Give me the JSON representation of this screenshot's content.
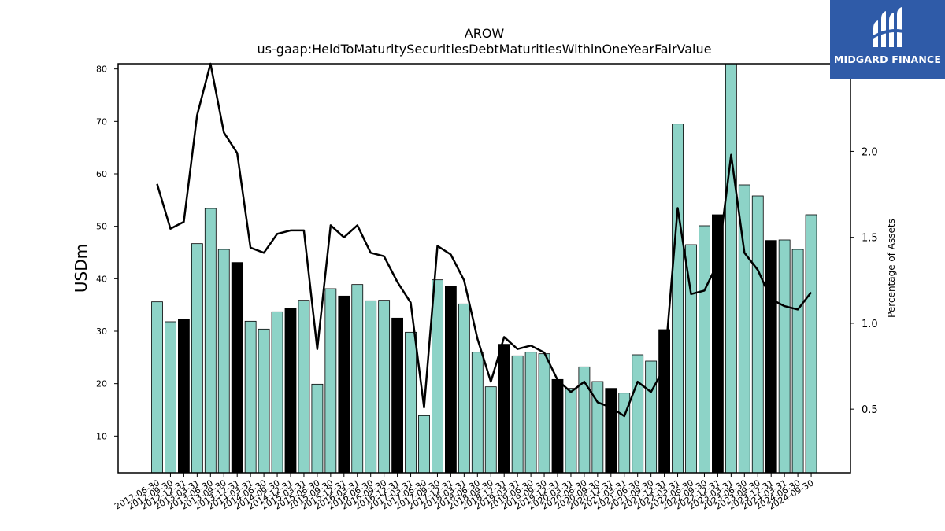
{
  "chart_data": {
    "type": "bar",
    "title": "AROW",
    "subtitle": "us-gaap:HeldToMaturitySecuritiesDebtMaturitiesWithinOneYearFairValue",
    "ylabel": "USDm",
    "y2label": "Percentage of Assets",
    "ylim": [
      3,
      81
    ],
    "y2lim": [
      0.13,
      2.51
    ],
    "yticks": [
      10,
      20,
      30,
      40,
      50,
      60,
      70,
      80
    ],
    "y2ticks": [
      0.5,
      1.0,
      1.5,
      2.0
    ],
    "y2ticklabels": [
      "0.5",
      "1.0",
      "1.5",
      "2.0"
    ],
    "bar_colors": {
      "quarter": "#8dd3c7",
      "year_end": "#000000"
    },
    "line_color": "#000000",
    "categories": [
      "2012-06-30",
      "2012-09-30",
      "2012-12-31",
      "2013-03-31",
      "2013-06-30",
      "2013-09-30",
      "2013-12-31",
      "2014-03-31",
      "2014-06-30",
      "2014-09-30",
      "2014-12-31",
      "2015-03-31",
      "2015-06-30",
      "2015-09-30",
      "2015-12-31",
      "2016-03-31",
      "2016-06-30",
      "2016-09-30",
      "2016-12-31",
      "2017-03-31",
      "2017-06-30",
      "2017-09-30",
      "2017-12-31",
      "2018-03-31",
      "2018-06-30",
      "2018-09-30",
      "2018-12-31",
      "2019-03-31",
      "2019-06-30",
      "2019-09-30",
      "2019-12-31",
      "2020-03-31",
      "2020-06-30",
      "2020-09-30",
      "2020-12-31",
      "2021-03-31",
      "2021-06-30",
      "2021-09-30",
      "2021-12-31",
      "2022-03-31",
      "2022-06-30",
      "2022-09-30",
      "2022-12-31",
      "2023-03-31",
      "2023-06-30",
      "2023-09-30",
      "2023-12-31",
      "2024-03-31",
      "2024-06-30",
      "2024-09-30"
    ],
    "series": [
      {
        "type": "bar",
        "values": [
          35.6,
          31.8,
          32.2,
          46.7,
          53.4,
          45.6,
          43.1,
          31.9,
          30.4,
          33.7,
          34.3,
          35.9,
          19.9,
          38.1,
          36.7,
          38.9,
          35.8,
          35.9,
          32.5,
          29.8,
          13.9,
          39.8,
          38.5,
          35.2,
          26.0,
          19.4,
          27.5,
          25.3,
          26.0,
          25.7,
          20.8,
          19.1,
          23.2,
          20.4,
          19.1,
          18.2,
          25.5,
          24.3,
          30.3,
          69.5,
          46.5,
          50.1,
          52.2,
          81.0,
          57.9,
          55.8,
          47.3,
          47.4,
          45.6,
          52.2
        ],
        "year_end": [
          false,
          false,
          true,
          false,
          false,
          false,
          true,
          false,
          false,
          false,
          true,
          false,
          false,
          false,
          true,
          false,
          false,
          false,
          true,
          false,
          false,
          false,
          true,
          false,
          false,
          false,
          true,
          false,
          false,
          false,
          true,
          false,
          false,
          false,
          true,
          false,
          false,
          false,
          true,
          false,
          false,
          false,
          true,
          false,
          false,
          false,
          true,
          false,
          false,
          false
        ]
      },
      {
        "type": "line",
        "axis": "right",
        "values": [
          1.81,
          1.55,
          1.59,
          2.21,
          2.54,
          2.11,
          1.99,
          1.44,
          1.41,
          1.52,
          1.54,
          1.54,
          0.85,
          1.57,
          1.5,
          1.57,
          1.41,
          1.39,
          1.24,
          1.12,
          0.51,
          1.45,
          1.4,
          1.25,
          0.91,
          0.66,
          0.92,
          0.85,
          0.87,
          0.83,
          0.67,
          0.6,
          0.66,
          0.54,
          0.51,
          0.46,
          0.66,
          0.6,
          0.74,
          1.67,
          1.17,
          1.19,
          1.35,
          1.98,
          1.41,
          1.31,
          1.14,
          1.1,
          1.08,
          1.18
        ]
      }
    ]
  },
  "logo": {
    "text": "MIDGARD FINANCE",
    "icon": "midgard-logo-icon",
    "background": "#2f5ba8"
  }
}
